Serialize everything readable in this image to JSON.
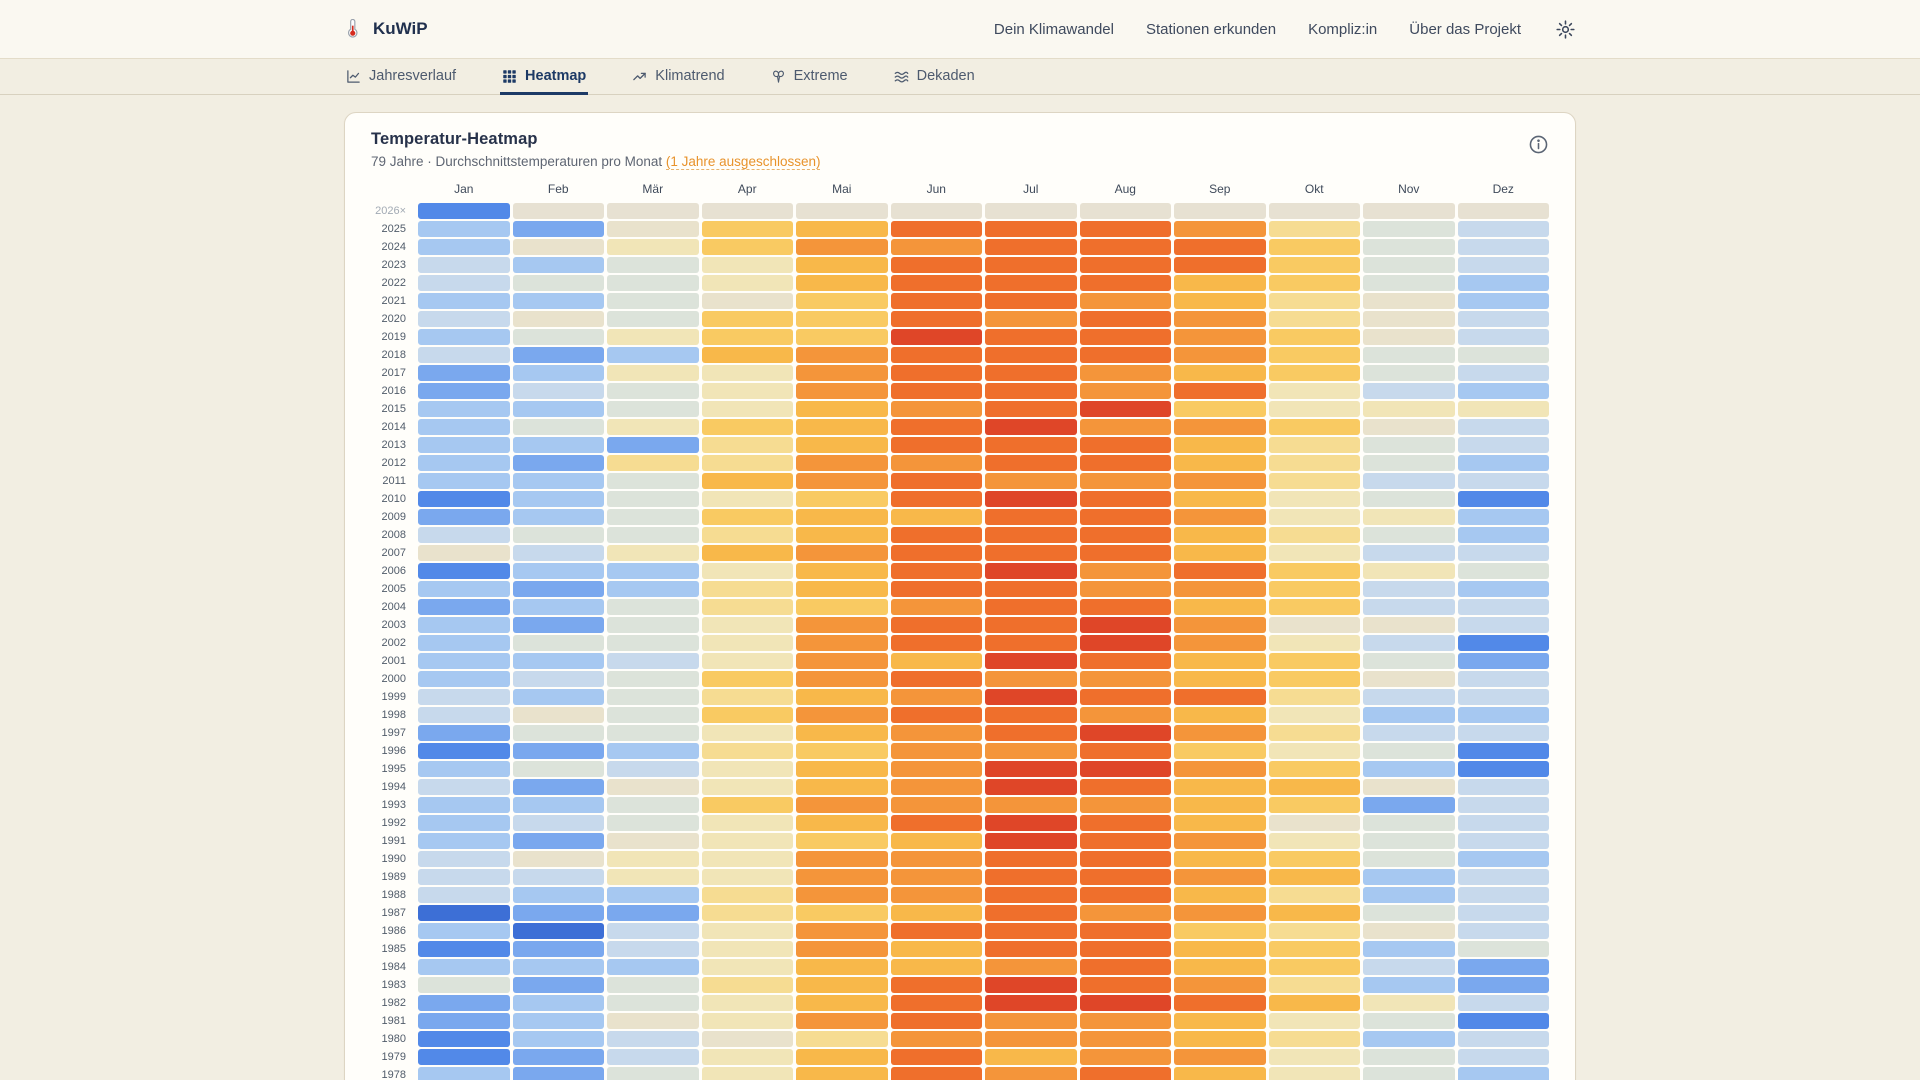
{
  "header": {
    "logo_text": "KuWiP",
    "logo_icon": "thermometer",
    "nav": [
      "Dein Klimawandel",
      "Stationen erkunden",
      "Kompliz:in",
      "Über das Projekt"
    ],
    "settings_icon": "gear"
  },
  "tabs": [
    {
      "label": "Jahresverlauf",
      "icon": "line-chart",
      "active": false
    },
    {
      "label": "Heatmap",
      "icon": "grid",
      "active": true
    },
    {
      "label": "Klimatrend",
      "icon": "trending-up",
      "active": false
    },
    {
      "label": "Extreme",
      "icon": "storm",
      "active": false
    },
    {
      "label": "Dekaden",
      "icon": "waves",
      "active": false
    }
  ],
  "card": {
    "title": "Temperatur-Heatmap",
    "subtitle_plain": "79 Jahre · Durchschnittstemperaturen pro Monat ",
    "subtitle_link": "(1 Jahre ausgeschlossen)",
    "info_icon": "info-circle"
  },
  "chart_data": {
    "type": "heatmap",
    "description": "Monatliche Durchschnittstemperaturen als Farbstufen: 0 = sehr kalt (dunkelblau) bis 13 = sehr heiss (rot); '.' = keine Daten",
    "columns": [
      "Jan",
      "Feb",
      "Mär",
      "Apr",
      "Mai",
      "Jun",
      "Jul",
      "Aug",
      "Sep",
      "Okt",
      "Nov",
      "Dez"
    ],
    "palette": [
      "#3d6fd6",
      "#5289e8",
      "#7aa8ee",
      "#a6c8f1",
      "#c7d9ec",
      "#dce3da",
      "#e9e2cc",
      "#f1e5b7",
      "#f6dc92",
      "#f9ca62",
      "#f8b84a",
      "#f4953a",
      "#ef6f2c",
      "#df4628"
    ],
    "nodata_color": "#e7e1d2",
    "rows": [
      {
        "year": "2026×",
        "excluded": true,
        "levels": "1..........."
      },
      {
        "year": "2025",
        "excluded": false,
        "levels": "3269acccb854"
      },
      {
        "year": "2024",
        "excluded": false,
        "levels": "3679bbccc954"
      },
      {
        "year": "2023",
        "excluded": false,
        "levels": "4357acccc954"
      },
      {
        "year": "2022",
        "excluded": false,
        "levels": "4557accca953"
      },
      {
        "year": "2021",
        "excluded": false,
        "levels": "33569ccba863"
      },
      {
        "year": "2020",
        "excluded": false,
        "levels": "46599cbcb864"
      },
      {
        "year": "2019",
        "excluded": false,
        "levels": "35799dccb964"
      },
      {
        "year": "2018",
        "excluded": false,
        "levels": "423abcccb955"
      },
      {
        "year": "2017",
        "excluded": false,
        "levels": "2377bccba954"
      },
      {
        "year": "2016",
        "excluded": false,
        "levels": "2457bccbc743"
      },
      {
        "year": "2015",
        "excluded": false,
        "levels": "3357abcd9777"
      },
      {
        "year": "2014",
        "excluded": false,
        "levels": "3579acdbb964"
      },
      {
        "year": "2013",
        "excluded": false,
        "levels": "3328accca854"
      },
      {
        "year": "2012",
        "excluded": false,
        "levels": "3288bbcca853"
      },
      {
        "year": "2011",
        "excluded": false,
        "levels": "335abcbbb844"
      },
      {
        "year": "2010",
        "excluded": false,
        "levels": "13579cdca751"
      },
      {
        "year": "2009",
        "excluded": false,
        "levels": "2359aaccb773"
      },
      {
        "year": "2008",
        "excluded": false,
        "levels": "4558accca853"
      },
      {
        "year": "2007",
        "excluded": false,
        "levels": "647abccca744"
      },
      {
        "year": "2006",
        "excluded": false,
        "levels": "1337acdbc975"
      },
      {
        "year": "2005",
        "excluded": false,
        "levels": "3238accbb943"
      },
      {
        "year": "2004",
        "excluded": false,
        "levels": "23589bcca944"
      },
      {
        "year": "2003",
        "excluded": false,
        "levels": "3257bccdb664"
      },
      {
        "year": "2002",
        "excluded": false,
        "levels": "3557bccdb741"
      },
      {
        "year": "2001",
        "excluded": false,
        "levels": "3347badca952"
      },
      {
        "year": "2000",
        "excluded": false,
        "levels": "3459bcbba964"
      },
      {
        "year": "1999",
        "excluded": false,
        "levels": "4358abdcc844"
      },
      {
        "year": "1998",
        "excluded": false,
        "levels": "4659bccba733"
      },
      {
        "year": "1997",
        "excluded": false,
        "levels": "2557abcdb844"
      },
      {
        "year": "1996",
        "excluded": false,
        "levels": "12389bbc9751"
      },
      {
        "year": "1995",
        "excluded": false,
        "levels": "3547abddb931"
      },
      {
        "year": "1994",
        "excluded": false,
        "levels": "4267abdcaa64"
      },
      {
        "year": "1993",
        "excluded": false,
        "levels": "3359bbbba924"
      },
      {
        "year": "1992",
        "excluded": false,
        "levels": "3457acdca654"
      },
      {
        "year": "1991",
        "excluded": false,
        "levels": "32679adcb754"
      },
      {
        "year": "1990",
        "excluded": false,
        "levels": "4677bbcca953"
      },
      {
        "year": "1989",
        "excluded": false,
        "levels": "4477bbccba34"
      },
      {
        "year": "1988",
        "excluded": false,
        "levels": "4338bbcca834"
      },
      {
        "year": "1987",
        "excluded": false,
        "levels": "02289acbba54"
      },
      {
        "year": "1986",
        "excluded": false,
        "levels": "3047bccc9864"
      },
      {
        "year": "1985",
        "excluded": false,
        "levels": "1247bacca935"
      },
      {
        "year": "1984",
        "excluded": false,
        "levels": "3337aabca942"
      },
      {
        "year": "1983",
        "excluded": false,
        "levels": "5258acdcb832"
      },
      {
        "year": "1982",
        "excluded": false,
        "levels": "2357acddca74"
      },
      {
        "year": "1981",
        "excluded": false,
        "levels": "2367bcbba751"
      },
      {
        "year": "1980",
        "excluded": false,
        "levels": "13468bbba834"
      },
      {
        "year": "1979",
        "excluded": false,
        "levels": "1247acabb754"
      },
      {
        "year": "1978",
        "excluded": false,
        "levels": "3257acbca753"
      }
    ]
  },
  "colors": {
    "page_bg": "#f2eee2",
    "header_bg": "#faf8f1",
    "card_bg": "#fffefa",
    "accent_navy": "#1d3a66",
    "accent_orange": "#e8932c"
  }
}
